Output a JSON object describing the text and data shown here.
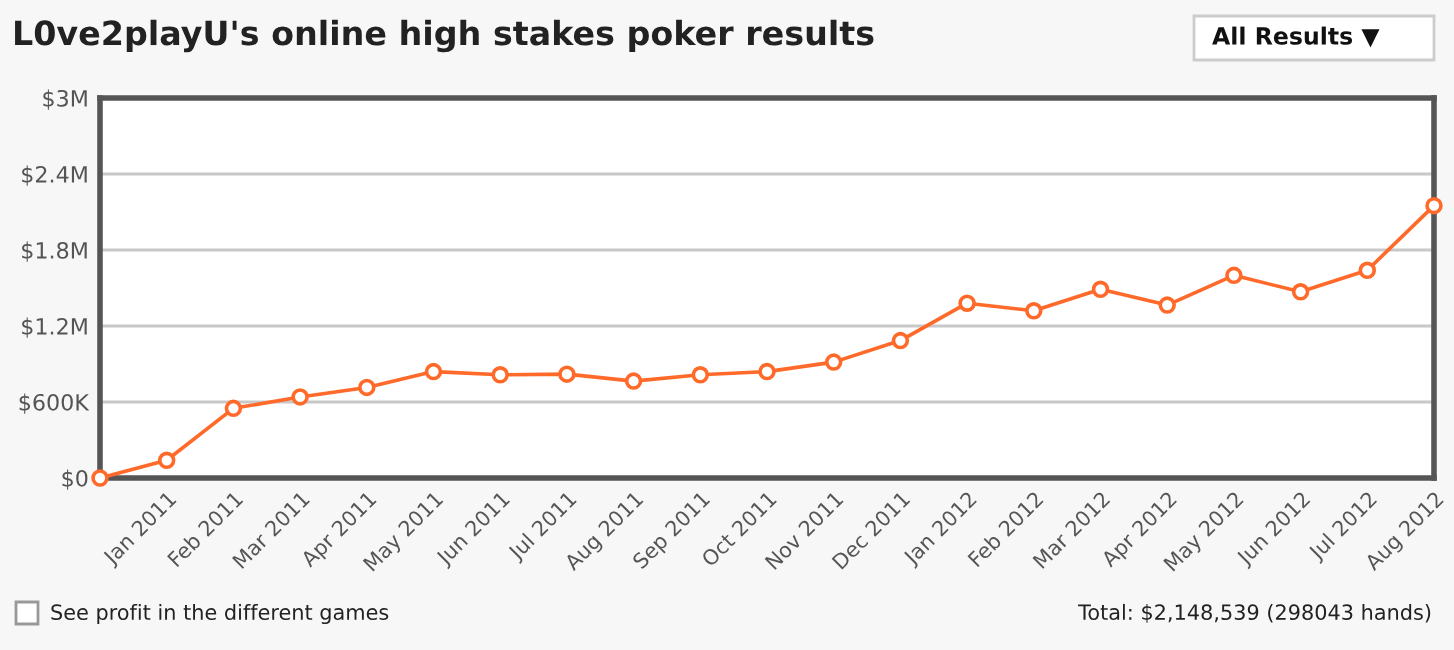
{
  "chart_data": {
    "type": "line",
    "title": "L0ve2playU's online high stakes poker results",
    "categories": [
      null,
      "Jan 2011",
      "Feb 2011",
      "Mar 2011",
      "Apr 2011",
      "May 2011",
      "Jun 2011",
      "Jul 2011",
      "Aug 2011",
      "Sep 2011",
      "Oct 2011",
      "Nov 2011",
      "Dec 2011",
      "Jan 2012",
      "Feb 2012",
      "Mar 2012",
      "Apr 2012",
      "May 2012",
      "Jun 2012",
      "Jul 2012",
      "Aug 2012"
    ],
    "series": [
      {
        "color": "#ff6a2a",
        "values": [
          0,
          140000,
          550000,
          640000,
          715000,
          840000,
          815000,
          820000,
          765000,
          815000,
          840000,
          915000,
          1085000,
          1380000,
          1320000,
          1490000,
          1365000,
          1600000,
          1470000,
          1640000,
          2150000
        ]
      }
    ],
    "ylim": [
      0,
      3000000
    ],
    "yticks": [
      {
        "value": 0,
        "label": "$0"
      },
      {
        "value": 600000,
        "label": "$600K"
      },
      {
        "value": 1200000,
        "label": "$1.2M"
      },
      {
        "value": 1800000,
        "label": "$1.8M"
      },
      {
        "value": 2400000,
        "label": "$2.4M"
      },
      {
        "value": 3000000,
        "label": "$3M"
      }
    ],
    "grid": "y",
    "legend": false,
    "marker": "circle",
    "line_style": "solid",
    "annotations": [
      "All Results ▼",
      "See profit in the different games",
      "Total: $2,148,539 (298043 hands)"
    ]
  }
}
